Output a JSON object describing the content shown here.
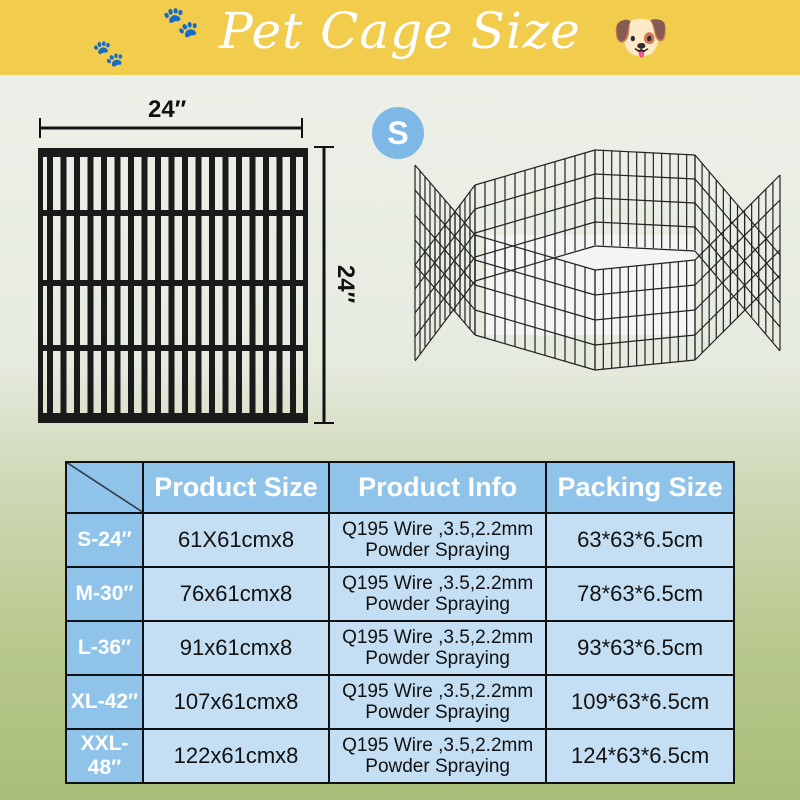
{
  "banner": {
    "title": "Pet Cage Size",
    "color": "#f2cc4c",
    "icons": [
      "paw-icon",
      "paw-icon",
      "cartoon-dog-icon"
    ]
  },
  "dimensions": {
    "width": "24″",
    "height": "24″",
    "size_badge": "S"
  },
  "table": {
    "headers": [
      "",
      "Product Size",
      "Product Info",
      "Packing Size"
    ],
    "rows": [
      {
        "size": "S-24″",
        "product_size": "61X61cmx8",
        "info_line1": "Q195 Wire ,3.5,2.2mm",
        "info_line2": "Powder Spraying",
        "packing": "63*63*6.5cm"
      },
      {
        "size": "M-30″",
        "product_size": "76x61cmx8",
        "info_line1": "Q195 Wire ,3.5,2.2mm",
        "info_line2": "Powder Spraying",
        "packing": "78*63*6.5cm"
      },
      {
        "size": "L-36″",
        "product_size": "91x61cmx8",
        "info_line1": "Q195 Wire ,3.5,2.2mm",
        "info_line2": "Powder Spraying",
        "packing": "93*63*6.5cm"
      },
      {
        "size": "XL-42″",
        "product_size": "107x61cmx8",
        "info_line1": "Q195 Wire ,3.5,2.2mm",
        "info_line2": "Powder Spraying",
        "packing": "109*63*6.5cm"
      },
      {
        "size": "XXL-48″",
        "product_size": "122x61cmx8",
        "info_line1": "Q195 Wire ,3.5,2.2mm",
        "info_line2": "Powder Spraying",
        "packing": "124*63*6.5cm"
      }
    ],
    "header_color": "#8fc3ea"
  }
}
